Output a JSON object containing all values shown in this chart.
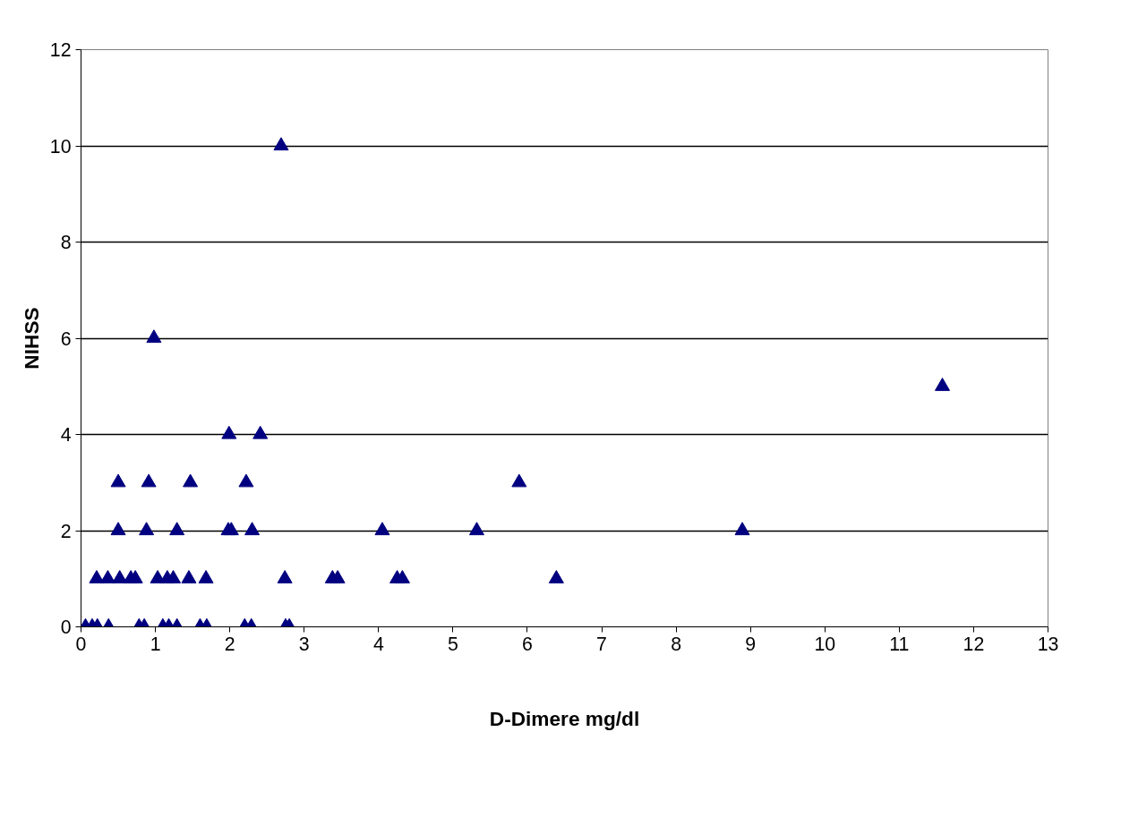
{
  "chart_data": {
    "type": "scatter",
    "xlabel": "D-Dimere mg/dl",
    "ylabel": "NIHSS",
    "marker": "triangle",
    "grid": "y",
    "xlim": [
      0,
      13
    ],
    "xticks": [
      0,
      1,
      2,
      3,
      4,
      5,
      6,
      7,
      8,
      9,
      10,
      11,
      12,
      13
    ],
    "ylim": [
      0,
      12
    ],
    "yticks": [
      0,
      2,
      4,
      6,
      8,
      10,
      12
    ],
    "series": [
      {
        "color": "#000080",
        "x": [
          2.69,
          0.98,
          1.99,
          2.41,
          11.58,
          0.5,
          0.91,
          1.47,
          2.22,
          5.89,
          0.5,
          0.88,
          1.29,
          1.98,
          2.02,
          2.3,
          4.05,
          5.32,
          8.89,
          0.21,
          0.36,
          0.52,
          0.67,
          0.73,
          1.03,
          1.16,
          1.24,
          1.45,
          1.68,
          2.74,
          3.38,
          3.45,
          4.25,
          4.32,
          6.39,
          0.06,
          0.15,
          0.22,
          0.37,
          0.78,
          0.85,
          1.1,
          1.18,
          1.29,
          1.6,
          1.69,
          2.2,
          2.29,
          2.75,
          2.8
        ],
        "values": [
          10,
          6,
          4,
          4,
          5,
          3,
          3,
          3,
          3,
          3,
          2,
          2,
          2,
          2,
          2,
          2,
          2,
          2,
          2,
          1,
          1,
          1,
          1,
          1,
          1,
          1,
          1,
          1,
          1,
          1,
          1,
          1,
          1,
          1,
          1,
          0,
          0,
          0,
          0,
          0,
          0,
          0,
          0,
          0,
          0,
          0,
          0,
          0,
          0,
          0
        ]
      }
    ]
  }
}
